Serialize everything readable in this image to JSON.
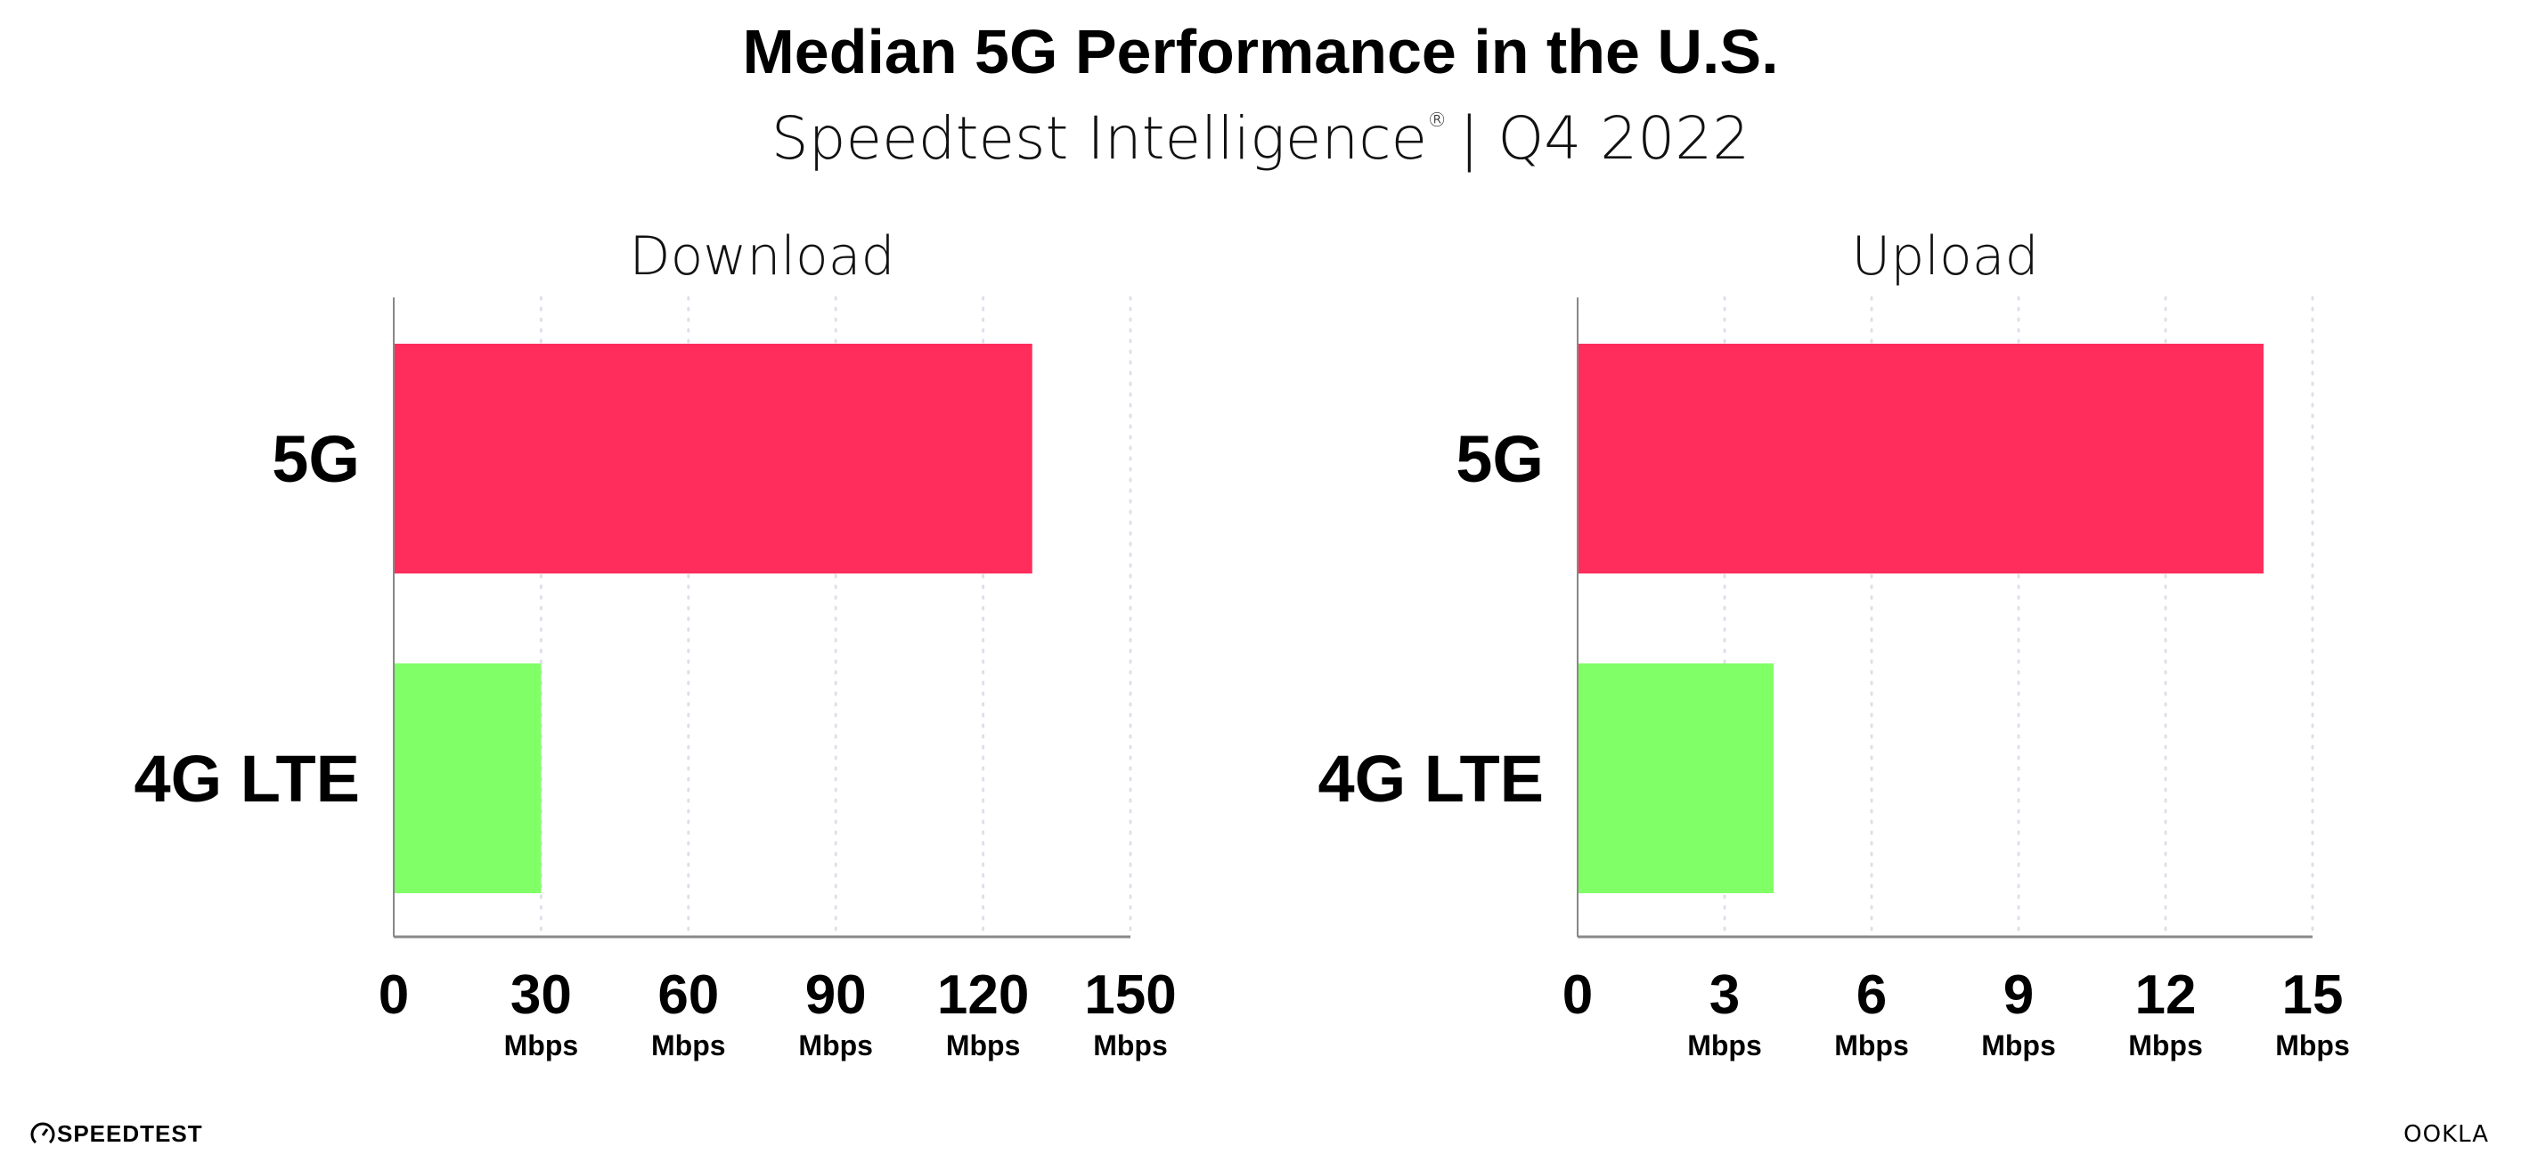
{
  "header": {
    "title": "Median 5G Performance in the U.S.",
    "subtitle": "Speedtest Intelligence",
    "registered_mark": "®",
    "subtitle_suffix": "| Q4 2022"
  },
  "colors": {
    "5G": "#ff2d5c",
    "4G LTE": "#80ff66",
    "grid": "#dde0ea",
    "axis": "#888888"
  },
  "chart_data": [
    {
      "type": "bar",
      "orientation": "horizontal",
      "title": "Download",
      "categories": [
        "5G",
        "4G LTE"
      ],
      "values": [
        130,
        30
      ],
      "xlim": [
        0,
        150
      ],
      "xticks": [
        "0",
        "30",
        "60",
        "90",
        "120",
        "150"
      ],
      "tick_units": [
        "",
        "Mbps",
        "Mbps",
        "Mbps",
        "Mbps",
        "Mbps"
      ],
      "grid": true
    },
    {
      "type": "bar",
      "orientation": "horizontal",
      "title": "Upload",
      "categories": [
        "5G",
        "4G LTE"
      ],
      "values": [
        14,
        4
      ],
      "xlim": [
        0,
        15
      ],
      "xticks": [
        "0",
        "3",
        "6",
        "9",
        "12",
        "15"
      ],
      "tick_units": [
        "",
        "Mbps",
        "Mbps",
        "Mbps",
        "Mbps",
        "Mbps"
      ],
      "grid": true
    }
  ],
  "footer": {
    "left_logo": "SPEEDTEST",
    "right_logo": "OOKLA"
  }
}
